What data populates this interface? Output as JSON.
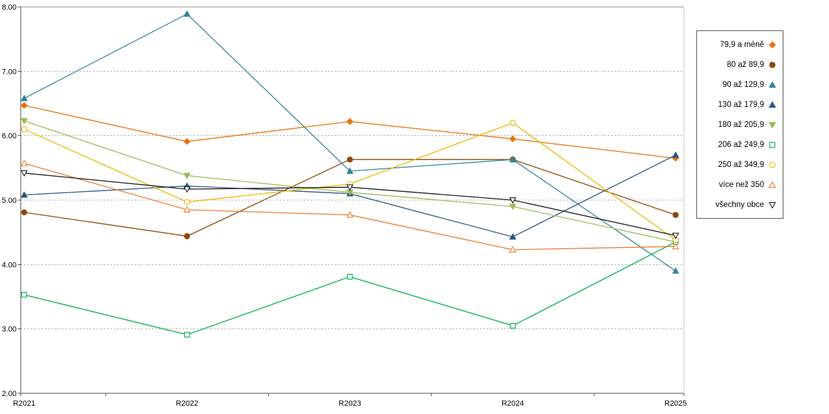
{
  "chart_data": {
    "type": "line",
    "title": "",
    "xlabel": "",
    "ylabel": "",
    "categories": [
      "R2021",
      "R2022",
      "R2023",
      "R2024",
      "R2025"
    ],
    "ylim": [
      2.0,
      8.0
    ],
    "yticks": [
      2,
      3,
      4,
      5,
      6,
      7,
      8
    ],
    "ytick_labels": [
      "2.00",
      "3.00",
      "4.00",
      "5.00",
      "6.00",
      "7.00",
      "8.00"
    ],
    "grid": "horizontal-dotted",
    "legend_position": "right",
    "series": [
      {
        "name": "79,9 a méně",
        "marker": "diamond",
        "fill": "filled",
        "color": "#E8720C",
        "values": [
          6.47,
          5.91,
          6.22,
          5.95,
          5.65
        ]
      },
      {
        "name": "80 až 89,9",
        "marker": "circle",
        "fill": "filled",
        "color": "#8C4A0E",
        "values": [
          4.81,
          4.44,
          5.63,
          5.63,
          4.77
        ]
      },
      {
        "name": "90 až 129,9",
        "marker": "triangle-up",
        "fill": "filled",
        "color": "#31849B",
        "values": [
          6.58,
          7.89,
          5.45,
          5.63,
          3.9
        ]
      },
      {
        "name": "130 až 179,9",
        "marker": "triangle-up",
        "fill": "filled",
        "color": "#2A5783",
        "values": [
          5.08,
          5.22,
          5.1,
          4.43,
          5.7
        ]
      },
      {
        "name": "180 až 205,9",
        "marker": "triangle-down",
        "fill": "filled",
        "color": "#9BBB59",
        "values": [
          6.23,
          5.38,
          5.12,
          4.9,
          4.35
        ]
      },
      {
        "name": "206 až 249,9",
        "marker": "square",
        "fill": "open",
        "color": "#00B050",
        "values": [
          3.53,
          2.91,
          3.81,
          3.05,
          4.35
        ]
      },
      {
        "name": "250 až 349,9",
        "marker": "circle",
        "fill": "open",
        "color": "#EDB700",
        "values": [
          6.1,
          4.97,
          5.25,
          6.2,
          4.38
        ]
      },
      {
        "name": "více než 350",
        "marker": "triangle-up",
        "fill": "open",
        "color": "#E87D2E",
        "values": [
          5.57,
          4.85,
          4.77,
          4.23,
          4.28
        ]
      },
      {
        "name": "všechny obce",
        "marker": "triangle-down",
        "fill": "open",
        "color": "#1A1A1A",
        "values": [
          5.42,
          5.17,
          5.2,
          5.0,
          4.45
        ]
      }
    ]
  }
}
